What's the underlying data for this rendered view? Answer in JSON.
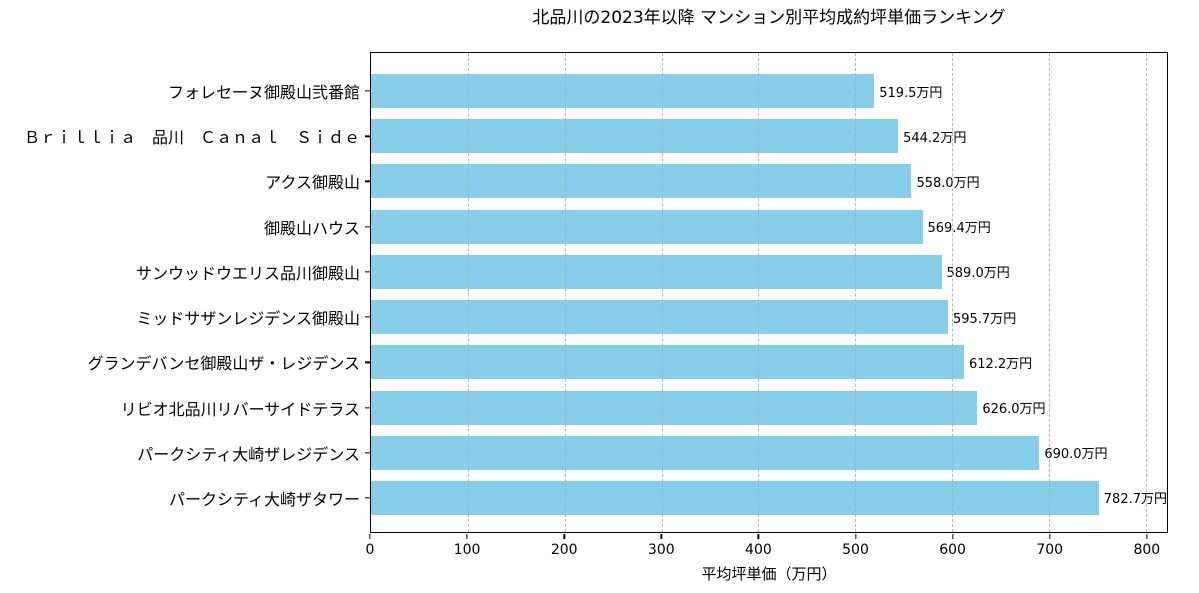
{
  "title": "北品川の2023年以降 マンション別平均成約坪単価ランキング",
  "chart_data": {
    "type": "bar",
    "orientation": "horizontal",
    "title": "北品川の2023年以降 マンション別平均成約坪単価ランキング",
    "xlabel": "平均坪単価（万円）",
    "ylabel": "",
    "xlim": [
      0,
      821.8
    ],
    "xticks": [
      0,
      100,
      200,
      300,
      400,
      500,
      600,
      700,
      800
    ],
    "grid": "vertical-dashed",
    "legend": "none",
    "bar_color": "#87CEEB",
    "categories": [
      "フォレセーヌ御殿山弐番館",
      "Ｂｒｉｌｌｉａ　品川　Ｃａｎａｌ　Ｓｉｄｅ",
      "アクス御殿山",
      "御殿山ハウス",
      "サンウッドウエリス品川御殿山",
      "ミッドサザンレジデンス御殿山",
      "グランデバンセ御殿山ザ・レジデンス",
      "リビオ北品川リバーサイドテラス",
      "パークシティ大崎ザレジデンス",
      "パークシティ大崎ザタワー"
    ],
    "values": [
      519.5,
      544.2,
      558.0,
      569.4,
      589.0,
      595.7,
      612.2,
      626.0,
      690.0,
      782.7
    ],
    "value_labels": [
      "519.5万円",
      "544.2万円",
      "558.0万円",
      "569.4万円",
      "589.0万円",
      "595.7万円",
      "612.2万円",
      "626.0万円",
      "690.0万円",
      "782.7万円"
    ]
  }
}
